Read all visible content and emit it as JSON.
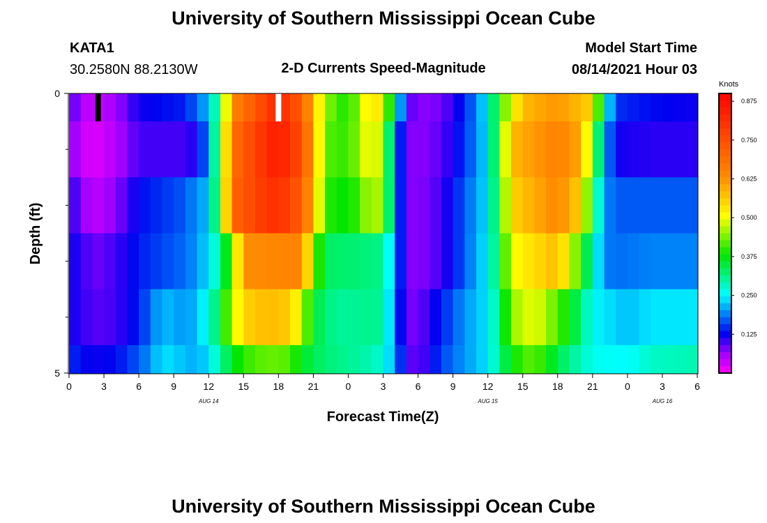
{
  "chart_data": {
    "type": "heatmap",
    "title": "University of Southern Mississippi Ocean Cube",
    "footer_title": "University of Southern Mississippi Ocean Cube",
    "subtitle": "2-D Currents Speed-Magnitude",
    "station": "KATA1",
    "coordinates": "30.2580N  88.2130W",
    "model_start_label": "Model Start Time",
    "model_start_value": "08/14/2021 Hour 03",
    "xlabel": "Forecast Time(Z)",
    "ylabel": "Depth (ft)",
    "colorbar_title": "Knots",
    "colorbar_range": [
      0.0,
      0.9
    ],
    "colorbar_ticks": [
      "0.125",
      "0.250",
      "0.375",
      "0.500",
      "0.625",
      "0.750",
      "0.875"
    ],
    "colorbar_tick_values": [
      0.125,
      0.25,
      0.375,
      0.5,
      0.625,
      0.75,
      0.875
    ],
    "x_range_hours": [
      0,
      54
    ],
    "x_ticks": [
      "0",
      "3",
      "6",
      "9",
      "12",
      "15",
      "18",
      "21",
      "0",
      "3",
      "6",
      "9",
      "12",
      "15",
      "18",
      "21",
      "0",
      "3",
      "6"
    ],
    "x_tick_hours": [
      0,
      3,
      6,
      9,
      12,
      15,
      18,
      21,
      24,
      27,
      30,
      33,
      36,
      39,
      42,
      45,
      48,
      51,
      54
    ],
    "date_labels": [
      {
        "text": "AUG 14",
        "hour": 12
      },
      {
        "text": "AUG 15",
        "hour": 36
      },
      {
        "text": "AUG 16",
        "hour": 51
      }
    ],
    "y_range_ft": [
      0,
      5
    ],
    "y_ticks": [
      "0",
      "5"
    ],
    "y_tick_values": [
      0,
      5
    ],
    "y_minor_ticks": [
      1,
      2,
      3,
      4
    ],
    "depth_bins_ft": [
      [
        0,
        0.5
      ],
      [
        0.5,
        1.5
      ],
      [
        1.5,
        2.5
      ],
      [
        2.5,
        3.5
      ],
      [
        3.5,
        4.5
      ],
      [
        4.5,
        5
      ]
    ],
    "series": [
      {
        "name": "0.0-0.5 ft",
        "keyframes": [
          [
            0,
            0.1
          ],
          [
            1,
            0.06
          ],
          [
            2,
            0.03
          ],
          [
            4,
            0.06
          ],
          [
            6,
            0.12
          ],
          [
            10,
            0.14
          ],
          [
            11,
            0.18
          ],
          [
            12,
            0.22
          ],
          [
            13,
            0.35
          ],
          [
            14,
            0.64
          ],
          [
            16,
            0.73
          ],
          [
            18,
            0.83
          ],
          [
            20,
            0.72
          ],
          [
            21,
            0.58
          ],
          [
            22,
            0.45
          ],
          [
            24,
            0.38
          ],
          [
            26,
            0.55
          ],
          [
            27,
            0.5
          ],
          [
            28,
            0.3
          ],
          [
            29,
            0.1
          ],
          [
            30,
            0.07
          ],
          [
            32,
            0.08
          ],
          [
            34,
            0.14
          ],
          [
            36,
            0.25
          ],
          [
            37,
            0.4
          ],
          [
            39,
            0.58
          ],
          [
            42,
            0.62
          ],
          [
            45,
            0.55
          ],
          [
            46,
            0.28
          ],
          [
            47,
            0.15
          ],
          [
            50,
            0.13
          ],
          [
            54,
            0.12
          ]
        ]
      },
      {
        "name": "0.5-1.5 ft",
        "keyframes": [
          [
            0,
            0.08
          ],
          [
            1,
            0.04
          ],
          [
            2,
            0.02
          ],
          [
            4,
            0.05
          ],
          [
            6,
            0.1
          ],
          [
            10,
            0.1
          ],
          [
            11,
            0.12
          ],
          [
            12,
            0.2
          ],
          [
            13,
            0.4
          ],
          [
            14,
            0.68
          ],
          [
            17,
            0.82
          ],
          [
            18,
            0.85
          ],
          [
            20,
            0.75
          ],
          [
            21,
            0.6
          ],
          [
            22,
            0.42
          ],
          [
            24,
            0.4
          ],
          [
            26,
            0.52
          ],
          [
            27,
            0.45
          ],
          [
            28,
            0.2
          ],
          [
            29,
            0.08
          ],
          [
            30,
            0.07
          ],
          [
            32,
            0.09
          ],
          [
            34,
            0.15
          ],
          [
            36,
            0.24
          ],
          [
            37,
            0.4
          ],
          [
            38,
            0.58
          ],
          [
            42,
            0.65
          ],
          [
            44,
            0.6
          ],
          [
            45,
            0.42
          ],
          [
            46,
            0.22
          ],
          [
            47,
            0.12
          ],
          [
            50,
            0.11
          ],
          [
            54,
            0.11
          ]
        ]
      },
      {
        "name": "1.5-2.5 ft",
        "keyframes": [
          [
            0,
            0.11
          ],
          [
            1,
            0.08
          ],
          [
            2,
            0.04
          ],
          [
            4,
            0.07
          ],
          [
            6,
            0.13
          ],
          [
            10,
            0.17
          ],
          [
            11,
            0.2
          ],
          [
            12,
            0.22
          ],
          [
            13,
            0.4
          ],
          [
            14,
            0.7
          ],
          [
            17,
            0.8
          ],
          [
            18,
            0.81
          ],
          [
            20,
            0.72
          ],
          [
            21,
            0.58
          ],
          [
            22,
            0.4
          ],
          [
            24,
            0.37
          ],
          [
            26,
            0.47
          ],
          [
            27,
            0.45
          ],
          [
            28,
            0.2
          ],
          [
            29,
            0.08
          ],
          [
            30,
            0.07
          ],
          [
            32,
            0.1
          ],
          [
            34,
            0.17
          ],
          [
            36,
            0.24
          ],
          [
            37,
            0.38
          ],
          [
            38,
            0.55
          ],
          [
            42,
            0.64
          ],
          [
            44,
            0.55
          ],
          [
            45,
            0.35
          ],
          [
            46,
            0.2
          ],
          [
            47,
            0.17
          ],
          [
            50,
            0.17
          ],
          [
            54,
            0.17
          ]
        ]
      },
      {
        "name": "2.5-3.5 ft",
        "keyframes": [
          [
            0,
            0.12
          ],
          [
            1,
            0.11
          ],
          [
            2,
            0.08
          ],
          [
            4,
            0.1
          ],
          [
            6,
            0.14
          ],
          [
            10,
            0.18
          ],
          [
            11,
            0.2
          ],
          [
            12,
            0.24
          ],
          [
            13,
            0.3
          ],
          [
            14,
            0.43
          ],
          [
            15,
            0.63
          ],
          [
            20,
            0.65
          ],
          [
            21,
            0.45
          ],
          [
            22,
            0.33
          ],
          [
            25,
            0.32
          ],
          [
            27,
            0.31
          ],
          [
            28,
            0.2
          ],
          [
            29,
            0.08
          ],
          [
            30,
            0.07
          ],
          [
            32,
            0.1
          ],
          [
            34,
            0.17
          ],
          [
            36,
            0.25
          ],
          [
            37,
            0.35
          ],
          [
            38,
            0.5
          ],
          [
            42,
            0.58
          ],
          [
            44,
            0.4
          ],
          [
            45,
            0.28
          ],
          [
            46,
            0.19
          ],
          [
            47,
            0.18
          ],
          [
            50,
            0.19
          ],
          [
            54,
            0.19
          ]
        ]
      },
      {
        "name": "3.5-4.5 ft",
        "keyframes": [
          [
            0,
            0.12
          ],
          [
            1,
            0.11
          ],
          [
            2,
            0.09
          ],
          [
            4,
            0.1
          ],
          [
            6,
            0.14
          ],
          [
            8,
            0.22
          ],
          [
            10,
            0.2
          ],
          [
            11,
            0.22
          ],
          [
            12,
            0.27
          ],
          [
            13,
            0.35
          ],
          [
            14,
            0.47
          ],
          [
            15,
            0.55
          ],
          [
            17,
            0.58
          ],
          [
            19,
            0.56
          ],
          [
            20,
            0.48
          ],
          [
            21,
            0.35
          ],
          [
            23,
            0.3
          ],
          [
            26,
            0.31
          ],
          [
            27,
            0.3
          ],
          [
            28,
            0.18
          ],
          [
            29,
            0.08
          ],
          [
            30,
            0.08
          ],
          [
            32,
            0.14
          ],
          [
            34,
            0.2
          ],
          [
            36,
            0.24
          ],
          [
            37,
            0.32
          ],
          [
            38,
            0.45
          ],
          [
            40,
            0.5
          ],
          [
            42,
            0.42
          ],
          [
            44,
            0.32
          ],
          [
            45,
            0.25
          ],
          [
            48,
            0.22
          ],
          [
            50,
            0.24
          ],
          [
            54,
            0.24
          ]
        ]
      },
      {
        "name": "4.5-5.0 ft",
        "keyframes": [
          [
            0,
            0.15
          ],
          [
            1,
            0.13
          ],
          [
            2,
            0.12
          ],
          [
            4,
            0.13
          ],
          [
            6,
            0.17
          ],
          [
            7,
            0.2
          ],
          [
            8,
            0.24
          ],
          [
            10,
            0.22
          ],
          [
            11,
            0.21
          ],
          [
            12,
            0.24
          ],
          [
            13,
            0.3
          ],
          [
            14,
            0.36
          ],
          [
            15,
            0.4
          ],
          [
            17,
            0.43
          ],
          [
            19,
            0.42
          ],
          [
            20,
            0.36
          ],
          [
            22,
            0.32
          ],
          [
            26,
            0.29
          ],
          [
            27,
            0.27
          ],
          [
            28,
            0.2
          ],
          [
            29,
            0.1
          ],
          [
            30,
            0.08
          ],
          [
            32,
            0.16
          ],
          [
            34,
            0.2
          ],
          [
            36,
            0.24
          ],
          [
            37,
            0.31
          ],
          [
            38,
            0.38
          ],
          [
            40,
            0.43
          ],
          [
            41,
            0.38
          ],
          [
            43,
            0.31
          ],
          [
            45,
            0.26
          ],
          [
            48,
            0.25
          ],
          [
            50,
            0.28
          ],
          [
            54,
            0.29
          ]
        ]
      }
    ],
    "markers": [
      {
        "hour": 2.5,
        "depth_ft": [
          0,
          0.5
        ],
        "color": "#000000"
      },
      {
        "hour": 18,
        "depth_ft": [
          0,
          0.5
        ],
        "color": "#ffffff"
      }
    ]
  }
}
